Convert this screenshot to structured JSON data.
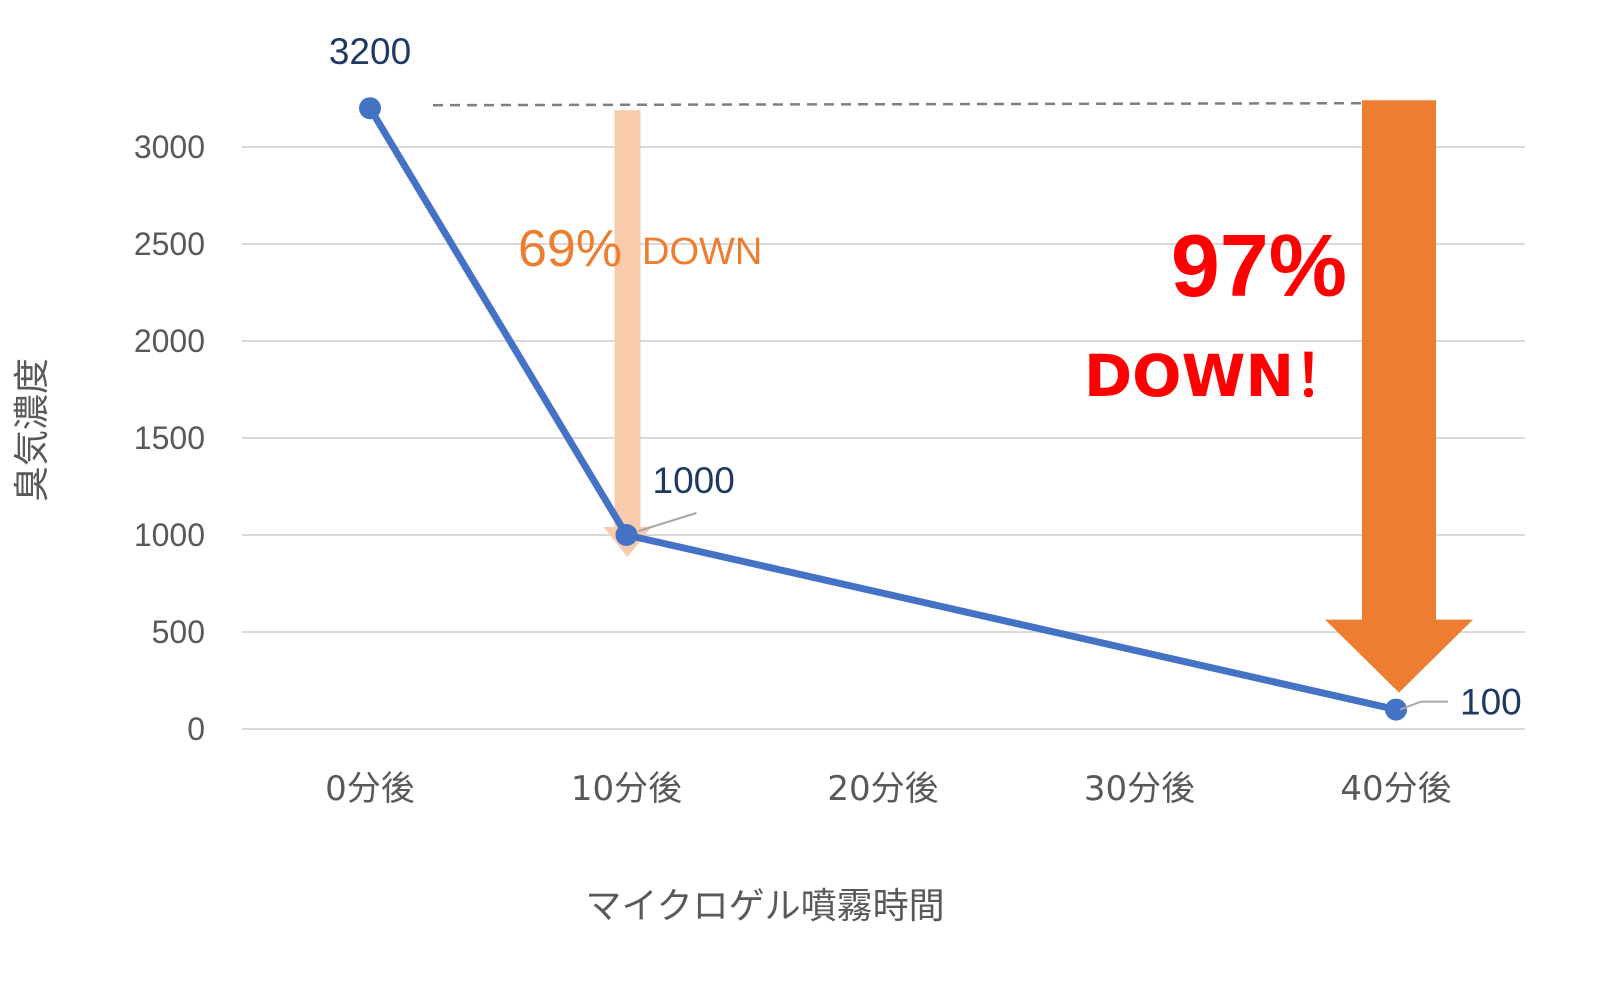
{
  "chart_data": {
    "type": "line",
    "title": "",
    "xlabel": "マイクロゲル噴霧時間",
    "ylabel": "臭気濃度",
    "categories": [
      "0分後",
      "10分後",
      "20分後",
      "30分後",
      "40分後"
    ],
    "yticks": [
      "0",
      "500",
      "1000",
      "1500",
      "2000",
      "2500",
      "3000"
    ],
    "ylim": [
      0,
      3300
    ],
    "grid": true,
    "legend": "none",
    "series": [
      {
        "points": [
          {
            "x": "0分後",
            "y": 3200,
            "label": "3200"
          },
          {
            "x": "10分後",
            "y": 1000,
            "label": "1000"
          },
          {
            "x": "40分後",
            "y": 100,
            "label": "100"
          }
        ]
      }
    ],
    "annotations": {
      "reference_value": 3200,
      "small_drop": {
        "percent": "69%",
        "word": "DOWN",
        "to_value": 1000
      },
      "big_drop": {
        "percent": "97%",
        "word": "DOWN！",
        "to_value": 100
      }
    },
    "colors": {
      "line": "#4472c4",
      "grid": "#d9d9d9",
      "tick_text": "#595959",
      "data_label": "#1f3864",
      "arrow_light": "#f8cbad",
      "arrow_dark": "#ed7d31",
      "small_text": "#ed7d31",
      "big_text": "#ff0000",
      "reference_line": "#7f7f7f"
    }
  }
}
